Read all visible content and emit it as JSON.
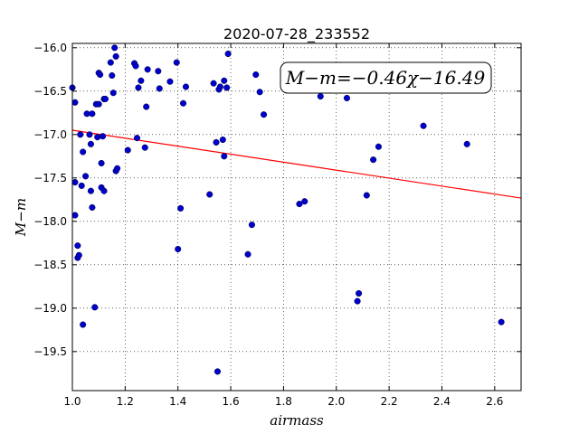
{
  "chart_data": {
    "type": "scatter",
    "title": "2020-07-28_233552",
    "xlabel": "airmass",
    "ylabel": "M−m",
    "xlim": [
      1.0,
      2.7
    ],
    "ylim": [
      -15.95,
      -19.95
    ],
    "y_inverted": true,
    "grid": true,
    "x_ticks": [
      "1.0",
      "1.2",
      "1.4",
      "1.6",
      "1.8",
      "2.0",
      "2.2",
      "2.4",
      "2.6"
    ],
    "y_ticks": [
      "−16.0",
      "−16.5",
      "−17.0",
      "−17.5",
      "−18.0",
      "−18.5",
      "−19.0",
      "−19.5"
    ],
    "annotation": "M−m=−0.46χ−16.49",
    "point_color": "#0000cc",
    "fit_color": "#ff0000",
    "fit": {
      "slope": -0.46,
      "intercept": -16.49
    },
    "points": [
      [
        1.0,
        -16.46
      ],
      [
        1.01,
        -16.63
      ],
      [
        1.01,
        -17.55
      ],
      [
        1.01,
        -17.93
      ],
      [
        1.02,
        -18.28
      ],
      [
        1.02,
        -18.42
      ],
      [
        1.025,
        -18.39
      ],
      [
        1.03,
        -17.0
      ],
      [
        1.035,
        -17.59
      ],
      [
        1.04,
        -17.2
      ],
      [
        1.04,
        -19.19
      ],
      [
        1.05,
        -17.48
      ],
      [
        1.055,
        -16.76
      ],
      [
        1.065,
        -17.0
      ],
      [
        1.07,
        -17.11
      ],
      [
        1.07,
        -17.65
      ],
      [
        1.075,
        -16.76
      ],
      [
        1.075,
        -17.84
      ],
      [
        1.085,
        -18.99
      ],
      [
        1.09,
        -16.65
      ],
      [
        1.095,
        -17.03
      ],
      [
        1.1,
        -16.65
      ],
      [
        1.1,
        -16.29
      ],
      [
        1.105,
        -16.31
      ],
      [
        1.11,
        -17.33
      ],
      [
        1.11,
        -17.61
      ],
      [
        1.115,
        -17.02
      ],
      [
        1.12,
        -17.65
      ],
      [
        1.12,
        -16.59
      ],
      [
        1.125,
        -16.59
      ],
      [
        1.145,
        -16.17
      ],
      [
        1.15,
        -16.32
      ],
      [
        1.155,
        -16.52
      ],
      [
        1.16,
        -16.0
      ],
      [
        1.165,
        -16.1
      ],
      [
        1.165,
        -17.42
      ],
      [
        1.17,
        -17.39
      ],
      [
        1.21,
        -17.18
      ],
      [
        1.235,
        -16.18
      ],
      [
        1.24,
        -16.21
      ],
      [
        1.245,
        -17.04
      ],
      [
        1.25,
        -16.46
      ],
      [
        1.26,
        -16.38
      ],
      [
        1.275,
        -17.15
      ],
      [
        1.28,
        -16.68
      ],
      [
        1.285,
        -16.25
      ],
      [
        1.325,
        -16.27
      ],
      [
        1.33,
        -16.47
      ],
      [
        1.37,
        -16.39
      ],
      [
        1.395,
        -16.17
      ],
      [
        1.4,
        -18.32
      ],
      [
        1.41,
        -17.85
      ],
      [
        1.42,
        -16.64
      ],
      [
        1.43,
        -16.45
      ],
      [
        1.52,
        -17.69
      ],
      [
        1.535,
        -16.41
      ],
      [
        1.545,
        -17.09
      ],
      [
        1.55,
        -19.73
      ],
      [
        1.555,
        -16.48
      ],
      [
        1.56,
        -16.45
      ],
      [
        1.57,
        -17.06
      ],
      [
        1.575,
        -16.38
      ],
      [
        1.575,
        -17.25
      ],
      [
        1.585,
        -16.46
      ],
      [
        1.59,
        -16.07
      ],
      [
        1.665,
        -18.38
      ],
      [
        1.68,
        -18.04
      ],
      [
        1.695,
        -16.31
      ],
      [
        1.71,
        -16.51
      ],
      [
        1.725,
        -16.77
      ],
      [
        1.86,
        -17.8
      ],
      [
        1.88,
        -17.77
      ],
      [
        1.94,
        -16.56
      ],
      [
        2.04,
        -16.58
      ],
      [
        2.08,
        -18.92
      ],
      [
        2.085,
        -18.83
      ],
      [
        2.115,
        -17.7
      ],
      [
        2.14,
        -17.29
      ],
      [
        2.16,
        -17.14
      ],
      [
        2.33,
        -16.9
      ],
      [
        2.495,
        -17.11
      ],
      [
        2.625,
        -19.16
      ]
    ]
  }
}
